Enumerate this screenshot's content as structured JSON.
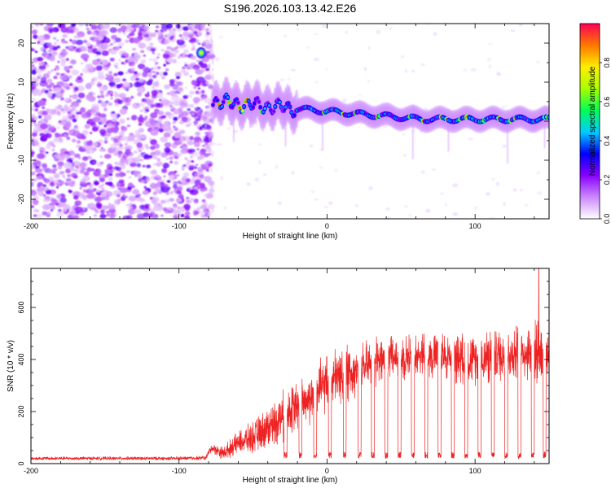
{
  "title": "S196.2026.103.13.42.E26",
  "colors": {
    "snr_line": "#ee2222",
    "axes": "#000000"
  },
  "chart_data": [
    {
      "type": "heatmap",
      "name": "spectrogram",
      "xlabel": "Height of straight line (km)",
      "ylabel": "Frequency (Hz)",
      "xlim": [
        -200,
        150
      ],
      "ylim": [
        -25,
        25
      ],
      "xticks": [
        -200,
        -100,
        0,
        100
      ],
      "yticks": [
        -20,
        -10,
        0,
        10,
        20
      ],
      "colorbar": {
        "label": "Normalized spectral amplitude",
        "range": [
          0,
          1
        ],
        "ticks": [
          0.0,
          0.2,
          0.4,
          0.6,
          0.8
        ],
        "tick_labels": [
          "0.0",
          "0.2",
          "0.4",
          "0.6",
          "0.8"
        ],
        "stops": [
          "#ffffff",
          "#cc88ff",
          "#8800ff",
          "#0000ff",
          "#00ccff",
          "#00ff55",
          "#aaff00",
          "#ffee00",
          "#ff7700",
          "#ff0055"
        ]
      },
      "features": {
        "noise_region_x": [
          -200,
          -78
        ],
        "spot_x": -85,
        "spot_freq": 17.5,
        "ridge_start_x": -77,
        "ridge_start_freq": 5,
        "ridge_end_freq": 0.5
      }
    },
    {
      "type": "line",
      "name": "snr",
      "xlabel": "Height of straight line (km)",
      "ylabel": "SNR (10 * v/v)",
      "xlim": [
        -200,
        150
      ],
      "ylim": [
        0,
        750
      ],
      "xticks": [
        -200,
        -100,
        0,
        100
      ],
      "yticks": [
        0,
        200,
        400,
        600
      ],
      "envelope": {
        "x": [
          -200,
          -100,
          -82,
          -78,
          -70,
          -60,
          -50,
          -40,
          -30,
          -20,
          -10,
          0,
          10,
          20,
          30,
          40,
          60,
          80,
          100,
          120,
          140,
          150
        ],
        "baseline": [
          20,
          20,
          22,
          60,
          40,
          80,
          100,
          140,
          180,
          220,
          260,
          310,
          340,
          360,
          380,
          400,
          420,
          410,
          400,
          420,
          430,
          430
        ],
        "spread": [
          8,
          8,
          10,
          20,
          30,
          50,
          70,
          90,
          110,
          110,
          120,
          130,
          130,
          120,
          110,
          100,
          100,
          110,
          110,
          120,
          130,
          150
        ]
      },
      "dips_x": [
        -28,
        -18,
        -8,
        2,
        12,
        22,
        31,
        40,
        49,
        58,
        67,
        76,
        85,
        94,
        103,
        112,
        121,
        130,
        139,
        147
      ],
      "dip_level": 20,
      "peak": {
        "x": 143,
        "y": 750
      }
    }
  ]
}
